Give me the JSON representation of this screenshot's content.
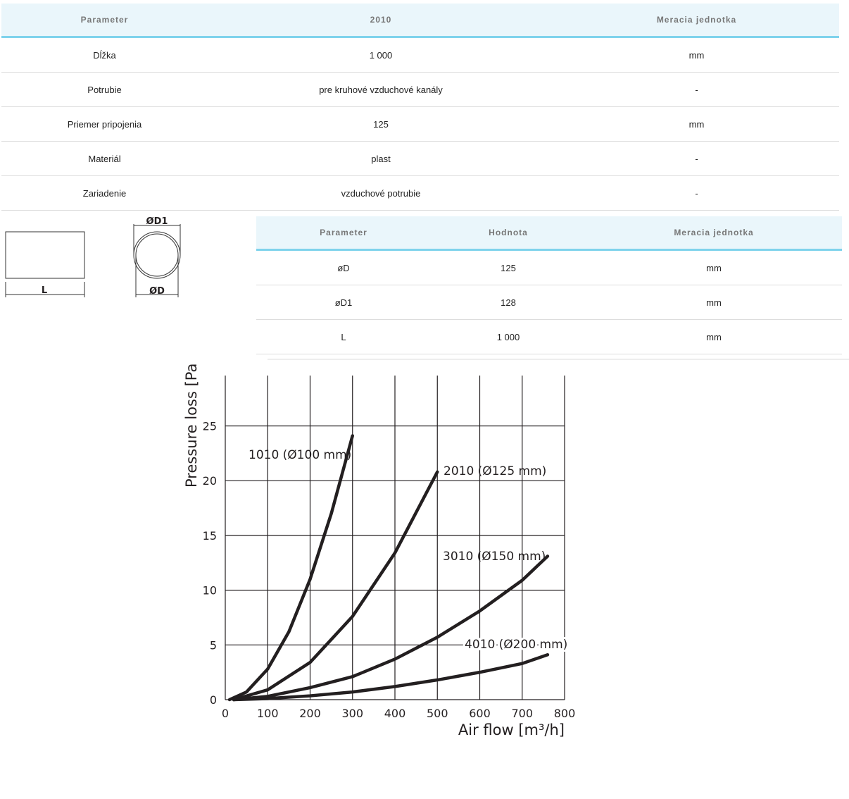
{
  "table1": {
    "header": [
      "Parameter",
      "2010",
      "Meracia jednotka"
    ],
    "rows": [
      [
        "Dĺžka",
        "1 000",
        "mm"
      ],
      [
        "Potrubie",
        "pre kruhové vzduchové kanály",
        "-"
      ],
      [
        "Priemer pripojenia",
        "125",
        "mm"
      ],
      [
        "Materiál",
        "plast",
        "-"
      ],
      [
        "Zariadenie",
        "vzduchové potrubie",
        "-"
      ]
    ]
  },
  "drawing": {
    "length_label": "L",
    "outer_label": "ØD1",
    "inner_label": "ØD"
  },
  "table2": {
    "header": [
      "Parameter",
      "Hodnota",
      "Meracia jednotka"
    ],
    "rows": [
      [
        "øD",
        "125",
        "mm"
      ],
      [
        "øD1",
        "128",
        "mm"
      ],
      [
        "L",
        "1 000",
        "mm"
      ]
    ]
  },
  "chart_data": {
    "type": "line",
    "y_label": "Pressure loss [Pa",
    "x_label": "Air flow [m³/h]",
    "xlim": [
      0,
      800
    ],
    "xticks": [
      0,
      100,
      200,
      300,
      400,
      500,
      600,
      700,
      800
    ],
    "ylim": [
      0,
      29.6
    ],
    "yticks": [
      0,
      5,
      10,
      15,
      20,
      25
    ],
    "grid": true,
    "series": [
      {
        "name": "1010 (Ø100 mm)",
        "color": "#231f20",
        "x": [
          10,
          50,
          100,
          150,
          200,
          250,
          300
        ],
        "values": [
          0,
          0.7,
          2.8,
          6.2,
          11,
          17,
          24.1
        ]
      },
      {
        "name": "2010 (Ø125 mm)",
        "color": "#231f20",
        "x": [
          20,
          100,
          200,
          300,
          400,
          500
        ],
        "values": [
          0,
          0.9,
          3.4,
          7.6,
          13.4,
          20.8
        ]
      },
      {
        "name": "3010 (Ø150 mm)",
        "color": "#231f20",
        "x": [
          20,
          100,
          200,
          300,
          400,
          500,
          600,
          700,
          760
        ],
        "values": [
          0,
          0.3,
          1.1,
          2.1,
          3.7,
          5.7,
          8.1,
          10.9,
          13.1
        ]
      },
      {
        "name": "4010 (Ø200 mm)",
        "color": "#231f20",
        "x": [
          20,
          100,
          200,
          300,
          400,
          500,
          600,
          700,
          760
        ],
        "values": [
          0,
          0.1,
          0.35,
          0.7,
          1.2,
          1.8,
          2.5,
          3.3,
          4.1
        ]
      }
    ]
  }
}
